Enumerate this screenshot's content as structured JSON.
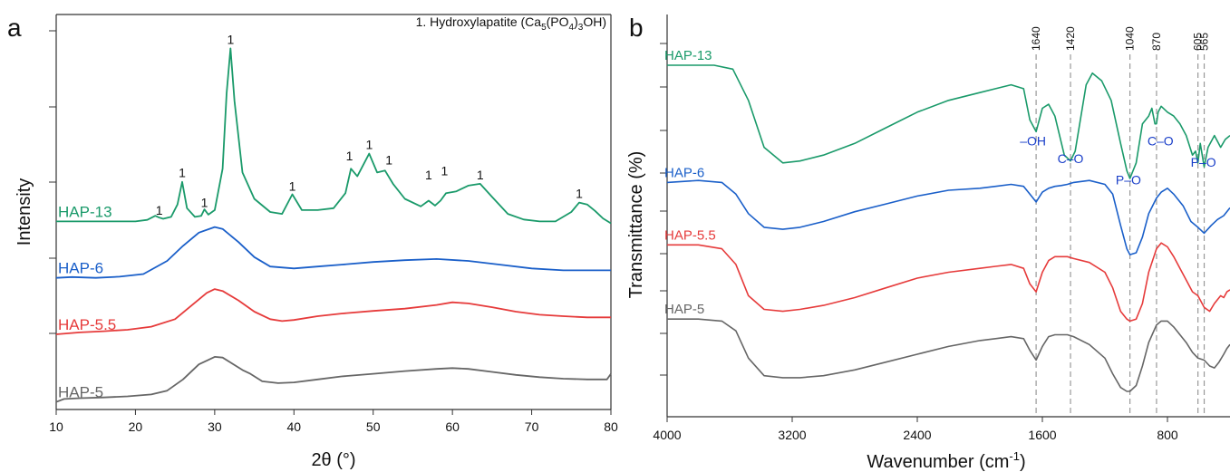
{
  "figure": {
    "panel_a_label": "a",
    "panel_b_label": "b"
  },
  "chart_data": [
    {
      "panel": "a",
      "type": "line",
      "xlabel": "2θ (°)",
      "ylabel": "Intensity",
      "xlim": [
        10,
        80
      ],
      "xticks": [
        10,
        20,
        30,
        40,
        50,
        60,
        70,
        80
      ],
      "y_units": "arbitrary (offset stacked)",
      "grid": false,
      "legend_title": "1. Hydroxylapatite (Ca",
      "legend_parts": {
        "a": "5",
        "b": "(PO",
        "c": "4",
        "d": ")",
        "e": "3",
        "f": "OH)"
      },
      "legend_text": "1. Hydroxylapatite (Ca5(PO4)3OH)",
      "legend_placement": "top-right",
      "peak_marker": "1",
      "peak_markers": [
        {
          "x": 23.0,
          "y": 5.18
        },
        {
          "x": 25.9,
          "y": 6.18
        },
        {
          "x": 28.7,
          "y": 5.38
        },
        {
          "x": 32.0,
          "y": 9.72
        },
        {
          "x": 39.8,
          "y": 5.82
        },
        {
          "x": 47.0,
          "y": 6.62
        },
        {
          "x": 49.5,
          "y": 6.92
        },
        {
          "x": 52.0,
          "y": 6.52
        },
        {
          "x": 57.0,
          "y": 6.12
        },
        {
          "x": 59.0,
          "y": 6.22
        },
        {
          "x": 63.5,
          "y": 6.12
        },
        {
          "x": 76.0,
          "y": 5.62
        }
      ],
      "series": [
        {
          "name": "HAP-13",
          "color": "#1a9a6a",
          "x": [
            10,
            15,
            20,
            21.5,
            22.5,
            23,
            23.5,
            24.5,
            25.3,
            25.9,
            26.5,
            27.5,
            28.3,
            28.7,
            29.2,
            30,
            31,
            31.5,
            32,
            32.5,
            33.5,
            35,
            37,
            38.5,
            39.8,
            41,
            43,
            45,
            46.5,
            47.2,
            48,
            49.5,
            50.5,
            51.5,
            52.5,
            54,
            56,
            57,
            57.8,
            58.5,
            59.2,
            60.5,
            62,
            63.5,
            65,
            67,
            69,
            71,
            73,
            75,
            76,
            77,
            78,
            79,
            80
          ],
          "y": [
            5.0,
            5.0,
            5.0,
            5.04,
            5.15,
            5.1,
            5.07,
            5.12,
            5.45,
            6.05,
            5.35,
            5.12,
            5.15,
            5.32,
            5.18,
            5.3,
            6.4,
            8.4,
            9.6,
            8.2,
            6.3,
            5.6,
            5.25,
            5.2,
            5.72,
            5.3,
            5.3,
            5.35,
            5.75,
            6.4,
            6.2,
            6.8,
            6.3,
            6.35,
            6.0,
            5.6,
            5.4,
            5.55,
            5.42,
            5.55,
            5.75,
            5.8,
            5.95,
            6.0,
            5.65,
            5.2,
            5.05,
            5.0,
            5.0,
            5.25,
            5.5,
            5.45,
            5.28,
            5.08,
            4.95
          ]
        },
        {
          "name": "HAP-6",
          "color": "#1a5fc9",
          "x": [
            10,
            12,
            15,
            18,
            21,
            24,
            26,
            28,
            30,
            31,
            33,
            35,
            37,
            40,
            43,
            46,
            50,
            54,
            58,
            62,
            66,
            70,
            74,
            78,
            80
          ],
          "y": [
            3.5,
            3.52,
            3.5,
            3.53,
            3.6,
            3.95,
            4.35,
            4.7,
            4.85,
            4.8,
            4.45,
            4.05,
            3.8,
            3.75,
            3.8,
            3.85,
            3.92,
            3.97,
            4.0,
            3.95,
            3.85,
            3.75,
            3.7,
            3.7,
            3.7
          ]
        },
        {
          "name": "HAP-5.5",
          "color": "#e63b3b",
          "x": [
            10,
            13,
            16,
            19,
            22,
            25,
            27,
            29,
            30,
            31,
            33,
            35,
            37,
            38.5,
            40,
            43,
            46,
            50,
            54,
            58,
            60,
            62,
            65,
            68,
            71,
            74,
            77,
            80
          ],
          "y": [
            2.0,
            2.05,
            2.08,
            2.12,
            2.2,
            2.4,
            2.75,
            3.1,
            3.2,
            3.15,
            2.9,
            2.6,
            2.4,
            2.35,
            2.38,
            2.48,
            2.55,
            2.62,
            2.68,
            2.78,
            2.85,
            2.82,
            2.72,
            2.6,
            2.52,
            2.48,
            2.45,
            2.45
          ]
        },
        {
          "name": "HAP-5",
          "color": "#666666",
          "x": [
            10,
            11,
            13,
            16,
            19,
            22,
            24,
            26,
            28,
            30,
            31,
            32,
            33.5,
            34.5,
            36,
            38,
            40,
            43,
            46,
            50,
            54,
            58,
            60,
            62,
            65,
            68,
            71,
            74,
            77,
            79.5,
            80
          ],
          "y": [
            0.2,
            0.28,
            0.3,
            0.32,
            0.35,
            0.4,
            0.5,
            0.8,
            1.2,
            1.4,
            1.38,
            1.25,
            1.05,
            0.95,
            0.75,
            0.7,
            0.72,
            0.8,
            0.88,
            0.95,
            1.02,
            1.08,
            1.1,
            1.08,
            1.0,
            0.92,
            0.86,
            0.82,
            0.8,
            0.8,
            0.95
          ]
        }
      ]
    },
    {
      "panel": "b",
      "type": "line",
      "xlabel": "Wavenumber (cm",
      "xlabel_sup": "-1",
      "xlabel_close": ")",
      "xlabel_full": "Wavenumber (cm-1)",
      "ylabel": "Transmittance (%)",
      "xlim": [
        4000,
        400
      ],
      "xticks": [
        4000,
        3200,
        2400,
        1600,
        800
      ],
      "x_reversed": true,
      "y_units": "arbitrary (offset stacked)",
      "grid": false,
      "reference_lines": [
        {
          "x": 1640,
          "label": "1640"
        },
        {
          "x": 1420,
          "label": "1420"
        },
        {
          "x": 1040,
          "label": "1040"
        },
        {
          "x": 870,
          "label": "870"
        },
        {
          "x": 605,
          "label": "605"
        },
        {
          "x": 565,
          "label": "565"
        }
      ],
      "annotations": [
        {
          "text": "–OH",
          "x": 1660,
          "y": 6.45
        },
        {
          "text": "C–O",
          "x": 1420,
          "y": 6.0
        },
        {
          "text": "C–O",
          "x": 845,
          "y": 6.45
        },
        {
          "text": "P–O",
          "x": 1050,
          "y": 5.45
        },
        {
          "text": "P–O",
          "x": 570,
          "y": 5.9
        }
      ],
      "series": [
        {
          "name": "HAP-13",
          "color": "#1a9a6a",
          "x": [
            4000,
            3700,
            3580,
            3480,
            3380,
            3260,
            3150,
            3000,
            2800,
            2600,
            2400,
            2200,
            2000,
            1900,
            1800,
            1720,
            1680,
            1640,
            1600,
            1560,
            1520,
            1460,
            1420,
            1390,
            1320,
            1280,
            1220,
            1160,
            1100,
            1060,
            1040,
            1000,
            960,
            920,
            900,
            880,
            870,
            860,
            840,
            800,
            760,
            720,
            680,
            640,
            620,
            605,
            590,
            565,
            540,
            500,
            460,
            430,
            400
          ],
          "y": [
            8.5,
            8.5,
            8.4,
            7.6,
            6.4,
            6.0,
            6.05,
            6.2,
            6.5,
            6.9,
            7.3,
            7.6,
            7.8,
            7.9,
            8.0,
            7.9,
            7.1,
            6.8,
            7.4,
            7.5,
            7.2,
            6.2,
            6.05,
            6.3,
            8.0,
            8.3,
            8.1,
            7.6,
            6.5,
            5.8,
            5.6,
            6.0,
            7.0,
            7.2,
            7.4,
            7.0,
            7.0,
            7.3,
            7.45,
            7.3,
            7.2,
            7.0,
            6.7,
            6.2,
            6.3,
            6.0,
            6.5,
            5.9,
            6.4,
            6.7,
            6.4,
            6.6,
            6.7
          ]
        },
        {
          "name": "HAP-6",
          "color": "#1a5fc9",
          "x": [
            4000,
            3800,
            3650,
            3560,
            3480,
            3380,
            3260,
            3150,
            3000,
            2800,
            2600,
            2400,
            2200,
            2000,
            1900,
            1800,
            1720,
            1680,
            1640,
            1600,
            1560,
            1520,
            1480,
            1440,
            1400,
            1300,
            1200,
            1150,
            1100,
            1060,
            1040,
            1000,
            960,
            920,
            870,
            840,
            800,
            760,
            700,
            650,
            605,
            565,
            520,
            480,
            440,
            400
          ],
          "y": [
            5.5,
            5.55,
            5.5,
            5.2,
            4.7,
            4.35,
            4.3,
            4.35,
            4.5,
            4.75,
            4.95,
            5.15,
            5.3,
            5.35,
            5.4,
            5.45,
            5.4,
            5.2,
            5.0,
            5.25,
            5.35,
            5.4,
            5.42,
            5.45,
            5.5,
            5.55,
            5.45,
            5.2,
            4.4,
            3.8,
            3.65,
            3.7,
            4.1,
            4.7,
            5.1,
            5.25,
            5.35,
            5.2,
            4.9,
            4.5,
            4.35,
            4.2,
            4.4,
            4.55,
            4.65,
            4.85
          ]
        },
        {
          "name": "HAP-5.5",
          "color": "#e63b3b",
          "x": [
            4000,
            3800,
            3650,
            3560,
            3480,
            3380,
            3260,
            3150,
            3000,
            2800,
            2600,
            2400,
            2200,
            2000,
            1900,
            1800,
            1720,
            1680,
            1640,
            1600,
            1560,
            1520,
            1480,
            1440,
            1400,
            1300,
            1200,
            1150,
            1100,
            1060,
            1040,
            1000,
            960,
            920,
            870,
            840,
            800,
            760,
            720,
            680,
            640,
            605,
            565,
            530,
            500,
            480,
            460,
            440,
            420,
            400
          ],
          "y": [
            3.9,
            3.9,
            3.8,
            3.4,
            2.6,
            2.25,
            2.2,
            2.25,
            2.35,
            2.55,
            2.8,
            3.05,
            3.2,
            3.3,
            3.35,
            3.4,
            3.3,
            2.9,
            2.7,
            3.2,
            3.5,
            3.6,
            3.6,
            3.6,
            3.55,
            3.45,
            3.2,
            2.8,
            2.2,
            2.0,
            1.95,
            2.0,
            2.4,
            3.2,
            3.8,
            3.95,
            3.85,
            3.6,
            3.3,
            3.0,
            2.7,
            2.6,
            2.3,
            2.2,
            2.4,
            2.5,
            2.6,
            2.55,
            2.7,
            2.75
          ]
        },
        {
          "name": "HAP-5",
          "color": "#666666",
          "x": [
            4000,
            3800,
            3650,
            3560,
            3480,
            3380,
            3260,
            3150,
            3000,
            2800,
            2600,
            2400,
            2200,
            2000,
            1900,
            1800,
            1720,
            1680,
            1640,
            1600,
            1560,
            1520,
            1480,
            1440,
            1400,
            1300,
            1200,
            1150,
            1100,
            1060,
            1040,
            1000,
            960,
            920,
            870,
            840,
            800,
            760,
            720,
            680,
            640,
            605,
            565,
            530,
            500,
            470,
            440,
            420,
            400
          ],
          "y": [
            2.0,
            2.0,
            1.95,
            1.7,
            1.0,
            0.55,
            0.5,
            0.5,
            0.55,
            0.7,
            0.9,
            1.1,
            1.3,
            1.45,
            1.5,
            1.55,
            1.5,
            1.2,
            0.95,
            1.3,
            1.55,
            1.6,
            1.6,
            1.6,
            1.55,
            1.35,
            1.0,
            0.6,
            0.25,
            0.15,
            0.15,
            0.3,
            0.8,
            1.4,
            1.85,
            1.95,
            1.95,
            1.8,
            1.6,
            1.4,
            1.15,
            1.0,
            0.95,
            0.8,
            0.75,
            0.9,
            1.1,
            1.25,
            1.35
          ]
        }
      ]
    }
  ]
}
